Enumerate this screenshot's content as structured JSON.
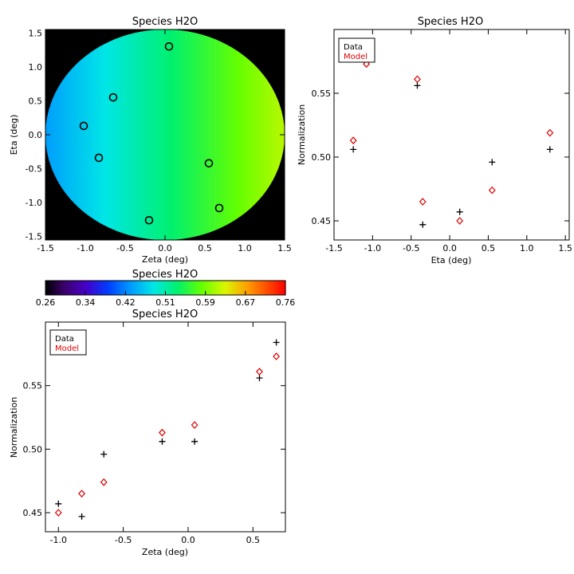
{
  "chart_data": [
    {
      "type": "heatmap",
      "title": "Species H2O",
      "xlabel": "Zeta (deg)",
      "ylabel": "Eta (deg)",
      "xlim": [
        -1.5,
        1.5
      ],
      "ylim": [
        -1.55,
        1.55
      ],
      "xticks": [
        "-1.5",
        "-1.0",
        "-0.5",
        "0.0",
        "0.5",
        "1.0",
        "1.5"
      ],
      "yticks": [
        "-1.5",
        "-1.0",
        "-0.5",
        "0.0",
        "0.5",
        "1.0",
        "1.5"
      ],
      "field_range": [
        0.44,
        0.62
      ],
      "background": "#000000",
      "markers": [
        {
          "x": 0.05,
          "y": 1.3
        },
        {
          "x": -0.65,
          "y": 0.55
        },
        {
          "x": -1.02,
          "y": 0.13
        },
        {
          "x": -0.83,
          "y": -0.34
        },
        {
          "x": 0.55,
          "y": -0.42
        },
        {
          "x": 0.68,
          "y": -1.08
        },
        {
          "x": -0.2,
          "y": -1.26
        }
      ]
    },
    {
      "type": "scatter",
      "title": "Species H2O",
      "xlabel": "Eta (deg)",
      "ylabel": "Normalization",
      "xlim": [
        -1.5,
        1.55
      ],
      "ylim": [
        0.435,
        0.6
      ],
      "xticks": [
        "-1.5",
        "-1.0",
        "-0.5",
        "0.0",
        "0.5",
        "1.0",
        "1.5"
      ],
      "yticks": [
        "0.45",
        "0.50",
        "0.55"
      ],
      "legend": "top-left",
      "series": [
        {
          "name": "Data",
          "color": "#000000",
          "marker": "plus",
          "x": [
            -1.08,
            -0.42,
            -1.25,
            0.55,
            1.3,
            0.13,
            -0.35
          ],
          "y": [
            0.584,
            0.556,
            0.506,
            0.496,
            0.506,
            0.457,
            0.447
          ]
        },
        {
          "name": "Model",
          "color": "#dd0000",
          "marker": "diamond",
          "x": [
            -1.08,
            -0.42,
            -1.25,
            1.3,
            -0.35,
            0.55,
            0.13
          ],
          "y": [
            0.573,
            0.561,
            0.513,
            0.519,
            0.465,
            0.474,
            0.45
          ]
        }
      ]
    },
    {
      "type": "scatter",
      "title": "Species H2O",
      "xlabel": "Zeta (deg)",
      "ylabel": "Normalization",
      "xlim": [
        -1.1,
        0.75
      ],
      "ylim": [
        0.435,
        0.6
      ],
      "xticks": [
        "-1.0",
        "-0.5",
        "0.0",
        "0.5"
      ],
      "yticks": [
        "0.45",
        "0.50",
        "0.55"
      ],
      "legend": "top-left",
      "series": [
        {
          "name": "Data",
          "color": "#000000",
          "marker": "plus",
          "x": [
            -1.0,
            -0.82,
            -0.65,
            -0.2,
            0.05,
            0.55,
            0.68
          ],
          "y": [
            0.457,
            0.447,
            0.496,
            0.506,
            0.506,
            0.556,
            0.584
          ]
        },
        {
          "name": "Model",
          "color": "#dd0000",
          "marker": "diamond",
          "x": [
            -1.0,
            -0.82,
            -0.65,
            -0.2,
            0.05,
            0.55,
            0.68
          ],
          "y": [
            0.45,
            0.465,
            0.474,
            0.513,
            0.519,
            0.561,
            0.573
          ]
        }
      ]
    }
  ],
  "colorbar": {
    "title": "Species H2O",
    "ticks": [
      "0.26",
      "0.34",
      "0.42",
      "0.51",
      "0.59",
      "0.67",
      "0.76"
    ],
    "range": [
      0.26,
      0.76
    ]
  }
}
